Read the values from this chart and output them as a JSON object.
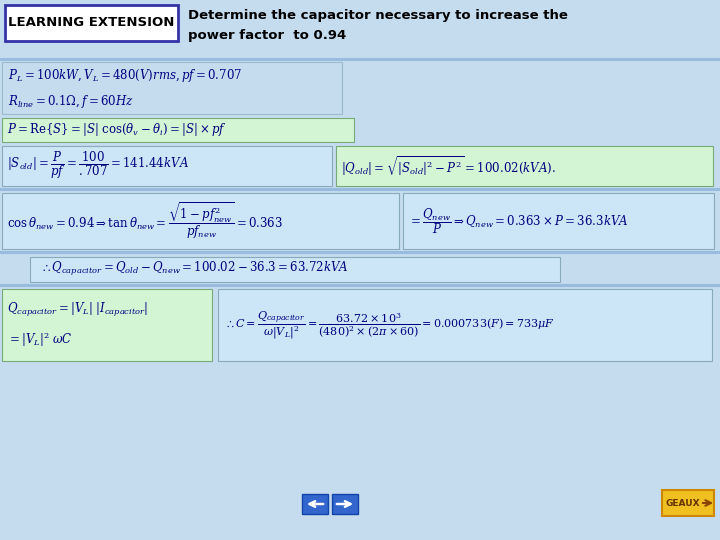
{
  "bg_color": "#c5dcef",
  "title_box_color": "#ffffff",
  "title_box_border": "#3333aa",
  "title_text": "LEARNING EXTENSION",
  "header_text1": "Determine the capacitor necessary to increase the",
  "header_text2": "power factor  to 0.94",
  "formula_color": "#000080",
  "green_box_bg": "#d4f5d4",
  "blue_box_bg": "#cce6f8",
  "nav_blue": "#3366cc",
  "geaux_yellow": "#f0c020",
  "geaux_border": "#cc8800",
  "white": "#ffffff",
  "fig_w": 7.2,
  "fig_h": 5.4,
  "dpi": 100
}
